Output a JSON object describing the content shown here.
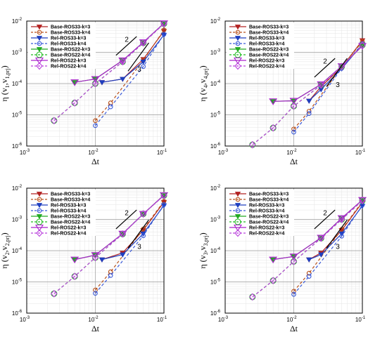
{
  "chart_data": [
    {
      "type": "line",
      "xlabel": "Δt",
      "ylabel": "η (v1,v1,prj)",
      "ylabel_base": "η (v",
      "ylabel_sub1": "1",
      "ylabel_mid": ",v",
      "ylabel_sub2": "1,prj",
      "ylabel_end": ")",
      "x_scale": "log",
      "y_scale": "log",
      "xlim": [
        0.001,
        0.1
      ],
      "ylim": [
        1e-06,
        0.01
      ],
      "x_ticks": [
        "10",
        "10",
        "10"
      ],
      "x_tick_exps": [
        "-3",
        "-2",
        "-1"
      ],
      "y_ticks": [
        "10",
        "10",
        "10",
        "10",
        "10"
      ],
      "y_tick_exps": [
        "-6",
        "-5",
        "-4",
        "-3",
        "-2"
      ],
      "grid": true,
      "legend_position": "top-right",
      "slope_annotations": [
        "2",
        "3"
      ],
      "series": [
        {
          "name": "Base-ROS33-k=3",
          "x": [
            0.0125,
            0.025,
            0.05,
            0.1
          ],
          "y": [
            0.00011,
            0.00014,
            0.0006,
            0.0048
          ]
        },
        {
          "name": "Base-ROS33-k=4",
          "x": [
            0.01,
            0.0167,
            0.05,
            0.1
          ],
          "y": [
            6.5e-06,
            2.4e-05,
            0.00055,
            0.0052
          ]
        },
        {
          "name": "Rel-ROS33-k=3",
          "x": [
            0.0125,
            0.025,
            0.05,
            0.1
          ],
          "y": [
            0.00011,
            0.00014,
            0.0005,
            0.0036
          ]
        },
        {
          "name": "Rel-ROS33-k=4",
          "x": [
            0.01,
            0.0167,
            0.05,
            0.1
          ],
          "y": [
            4.5e-06,
            1.8e-05,
            0.00035,
            0.0038
          ]
        },
        {
          "name": "Base-ROS22-k=3",
          "x": [
            0.005,
            0.01,
            0.025,
            0.05,
            0.1
          ],
          "y": [
            0.00011,
            0.00014,
            0.00055,
            0.0021,
            0.0085
          ]
        },
        {
          "name": "Base-ROS22-k=4",
          "x": [
            0.0025,
            0.005,
            0.01,
            0.025,
            0.05,
            0.1
          ],
          "y": [
            6.5e-06,
            2.4e-05,
            0.0001,
            0.0005,
            0.002,
            0.0082
          ]
        },
        {
          "name": "Rel-ROS22-k=3",
          "x": [
            0.005,
            0.01,
            0.025,
            0.05,
            0.1
          ],
          "y": [
            0.00011,
            0.00014,
            0.00055,
            0.0021,
            0.0085
          ]
        },
        {
          "name": "Rel-ROS22-k=4",
          "x": [
            0.0025,
            0.005,
            0.01,
            0.025,
            0.05,
            0.1
          ],
          "y": [
            6.5e-06,
            2.4e-05,
            0.0001,
            0.0005,
            0.002,
            0.0082
          ]
        }
      ]
    },
    {
      "type": "line",
      "xlabel": "Δt",
      "ylabel": "η (v4,v4,prj)",
      "ylabel_base": "η (v",
      "ylabel_sub1": "4",
      "ylabel_mid": ",v",
      "ylabel_sub2": "4,prj",
      "ylabel_end": ")",
      "x_scale": "log",
      "y_scale": "log",
      "xlim": [
        0.001,
        0.1
      ],
      "ylim": [
        1e-06,
        0.01
      ],
      "x_ticks": [
        "10",
        "10",
        "10"
      ],
      "x_tick_exps": [
        "-3",
        "-2",
        "-1"
      ],
      "y_ticks": [
        "10",
        "10",
        "10",
        "10",
        "10"
      ],
      "y_tick_exps": [
        "-6",
        "-5",
        "-4",
        "-3",
        "-2"
      ],
      "grid": true,
      "legend_position": "top-right",
      "slope_annotations": [
        "2",
        "3"
      ],
      "series": [
        {
          "name": "Base-ROS33-k=3",
          "x": [
            0.0167,
            0.025,
            0.05,
            0.1
          ],
          "y": [
            2.8e-05,
            8e-05,
            0.00033,
            0.0024
          ]
        },
        {
          "name": "Base-ROS33-k=4",
          "x": [
            0.01,
            0.0167,
            0.05,
            0.1
          ],
          "y": [
            3.5e-06,
            1.3e-05,
            0.00034,
            0.0022
          ]
        },
        {
          "name": "Rel-ROS33-k=3",
          "x": [
            0.0167,
            0.025,
            0.05,
            0.1
          ],
          "y": [
            2.8e-05,
            6.5e-05,
            0.0003,
            0.0018
          ]
        },
        {
          "name": "Rel-ROS33-k=4",
          "x": [
            0.01,
            0.0167,
            0.05,
            0.1
          ],
          "y": [
            2.8e-06,
            1.1e-05,
            0.00031,
            0.0019
          ]
        },
        {
          "name": "Base-ROS22-k=3",
          "x": [
            0.005,
            0.01,
            0.025,
            0.05,
            0.1
          ],
          "y": [
            2.7e-05,
            2.8e-05,
            9.5e-05,
            0.00036,
            0.0016
          ]
        },
        {
          "name": "Base-ROS22-k=4",
          "x": [
            0.0025,
            0.005,
            0.01,
            0.025,
            0.05,
            0.1
          ],
          "y": [
            1.1e-06,
            3.8e-06,
            1.9e-05,
            9e-05,
            0.00035,
            0.0017
          ]
        },
        {
          "name": "Rel-ROS22-k=3",
          "x": [
            0.005,
            0.01,
            0.025,
            0.05,
            0.1
          ],
          "y": [
            2.7e-05,
            2.8e-05,
            9.5e-05,
            0.00036,
            0.0016
          ]
        },
        {
          "name": "Rel-ROS22-k=4",
          "x": [
            0.0025,
            0.005,
            0.01,
            0.025,
            0.05,
            0.1
          ],
          "y": [
            1.1e-06,
            3.8e-06,
            1.9e-05,
            9e-05,
            0.00035,
            0.0017
          ]
        }
      ]
    },
    {
      "type": "line",
      "xlabel": "Δt",
      "ylabel": "η (v2,v2,prj)",
      "ylabel_base": "η (v",
      "ylabel_sub1": "2",
      "ylabel_mid": ",v",
      "ylabel_sub2": "2,prj",
      "ylabel_end": ")",
      "x_scale": "log",
      "y_scale": "log",
      "xlim": [
        0.001,
        0.1
      ],
      "ylim": [
        1e-06,
        0.01
      ],
      "x_ticks": [
        "10",
        "10",
        "10"
      ],
      "x_tick_exps": [
        "-3",
        "-2",
        "-1"
      ],
      "y_ticks": [
        "10",
        "10",
        "10",
        "10",
        "10"
      ],
      "y_tick_exps": [
        "-6",
        "-5",
        "-4",
        "-3",
        "-2"
      ],
      "grid": true,
      "legend_position": "top-right",
      "slope_annotations": [
        "2",
        "3"
      ],
      "series": [
        {
          "name": "Base-ROS33-k=3",
          "x": [
            0.0125,
            0.025,
            0.05,
            0.1
          ],
          "y": [
            5.2e-05,
            8.5e-05,
            0.00045,
            0.0036
          ]
        },
        {
          "name": "Base-ROS33-k=4",
          "x": [
            0.01,
            0.0167,
            0.05,
            0.1
          ],
          "y": [
            5.5e-06,
            2.1e-05,
            0.00049,
            0.0038
          ]
        },
        {
          "name": "Rel-ROS33-k=3",
          "x": [
            0.0125,
            0.025,
            0.05,
            0.1
          ],
          "y": [
            5.2e-05,
            7.5e-05,
            0.00035,
            0.0028
          ]
        },
        {
          "name": "Rel-ROS33-k=4",
          "x": [
            0.01,
            0.0167,
            0.05,
            0.1
          ],
          "y": [
            4.3e-06,
            1.6e-05,
            0.0003,
            0.003
          ]
        },
        {
          "name": "Base-ROS22-k=3",
          "x": [
            0.005,
            0.01,
            0.025,
            0.05,
            0.1
          ],
          "y": [
            5.2e-05,
            7.2e-05,
            0.00035,
            0.0015,
            0.006
          ]
        },
        {
          "name": "Base-ROS22-k=4",
          "x": [
            0.0025,
            0.005,
            0.01,
            0.025,
            0.05,
            0.1
          ],
          "y": [
            4.2e-06,
            1.5e-05,
            6e-05,
            0.00034,
            0.0015,
            0.0058
          ]
        },
        {
          "name": "Rel-ROS22-k=3",
          "x": [
            0.005,
            0.01,
            0.025,
            0.05,
            0.1
          ],
          "y": [
            5.2e-05,
            7.2e-05,
            0.00035,
            0.0015,
            0.006
          ]
        },
        {
          "name": "Rel-ROS22-k=4",
          "x": [
            0.0025,
            0.005,
            0.01,
            0.025,
            0.05,
            0.1
          ],
          "y": [
            4.2e-06,
            1.5e-05,
            6e-05,
            0.00034,
            0.0015,
            0.0058
          ]
        }
      ]
    },
    {
      "type": "line",
      "xlabel": "Δt",
      "ylabel": "η (v3,v3,prj)",
      "ylabel_base": "η (v",
      "ylabel_sub1": "3",
      "ylabel_mid": ",v",
      "ylabel_sub2": "3,prj",
      "ylabel_end": ")",
      "x_scale": "log",
      "y_scale": "log",
      "xlim": [
        0.001,
        0.1
      ],
      "ylim": [
        1e-06,
        0.01
      ],
      "x_ticks": [
        "10",
        "10",
        "10"
      ],
      "x_tick_exps": [
        "-3",
        "-2",
        "-1"
      ],
      "y_ticks": [
        "10",
        "10",
        "10",
        "10",
        "10"
      ],
      "y_tick_exps": [
        "-6",
        "-5",
        "-4",
        "-3",
        "-2"
      ],
      "grid": true,
      "legend_position": "top-right",
      "slope_annotations": [
        "2",
        "3"
      ],
      "series": [
        {
          "name": "Base-ROS33-k=3",
          "x": [
            0.0167,
            0.025,
            0.05,
            0.1
          ],
          "y": [
            5.2e-05,
            8.5e-05,
            0.00045,
            0.0035
          ]
        },
        {
          "name": "Base-ROS33-k=4",
          "x": [
            0.01,
            0.0167,
            0.05,
            0.1
          ],
          "y": [
            5e-06,
            1.9e-05,
            0.00048,
            0.0037
          ]
        },
        {
          "name": "Rel-ROS33-k=3",
          "x": [
            0.0167,
            0.025,
            0.05,
            0.1
          ],
          "y": [
            5.2e-05,
            7.5e-05,
            0.00035,
            0.0027
          ]
        },
        {
          "name": "Rel-ROS33-k=4",
          "x": [
            0.01,
            0.0167,
            0.05,
            0.1
          ],
          "y": [
            4e-06,
            1.5e-05,
            0.00029,
            0.0029
          ]
        },
        {
          "name": "Base-ROS22-k=3",
          "x": [
            0.005,
            0.01,
            0.025,
            0.05,
            0.1
          ],
          "y": [
            5.2e-05,
            6.5e-05,
            0.00026,
            0.0011,
            0.0042
          ]
        },
        {
          "name": "Base-ROS22-k=4",
          "x": [
            0.0025,
            0.005,
            0.01,
            0.025,
            0.05,
            0.1
          ],
          "y": [
            3.3e-06,
            1.1e-05,
            4.5e-05,
            0.00025,
            0.001,
            0.004
          ]
        },
        {
          "name": "Rel-ROS22-k=3",
          "x": [
            0.005,
            0.01,
            0.025,
            0.05,
            0.1
          ],
          "y": [
            5.2e-05,
            6.5e-05,
            0.00026,
            0.0011,
            0.0042
          ]
        },
        {
          "name": "Rel-ROS22-k=4",
          "x": [
            0.0025,
            0.005,
            0.01,
            0.025,
            0.05,
            0.1
          ],
          "y": [
            3.3e-06,
            1.1e-05,
            4.5e-05,
            0.00025,
            0.001,
            0.004
          ]
        }
      ]
    }
  ],
  "series_styles": [
    {
      "color": "#b22222",
      "dash": "none",
      "marker": "tri-down-filled"
    },
    {
      "color": "#b8521c",
      "dash": "dashed",
      "marker": "circle-open"
    },
    {
      "color": "#1f3fbf",
      "dash": "none",
      "marker": "tri-down-filled"
    },
    {
      "color": "#3a5ad9",
      "dash": "dashed",
      "marker": "circle-open"
    },
    {
      "color": "#22aa22",
      "dash": "none",
      "marker": "tri-down-filled"
    },
    {
      "color": "#22bb22",
      "dash": "dashed",
      "marker": "circle-open-large"
    },
    {
      "color": "#aa22cc",
      "dash": "none",
      "marker": "tri-down-open"
    },
    {
      "color": "#bb44dd",
      "dash": "dashed",
      "marker": "diamond-open"
    }
  ]
}
